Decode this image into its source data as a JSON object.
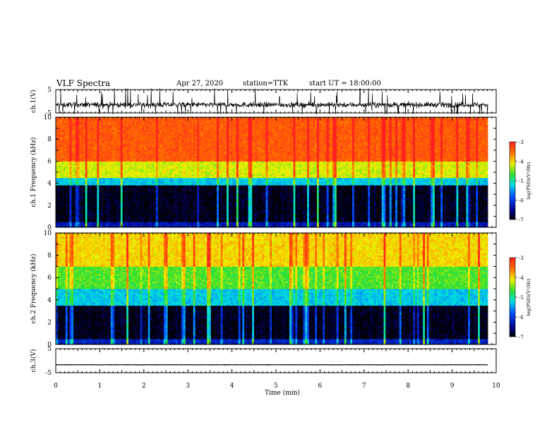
{
  "header": {
    "title": "VLF Spectra",
    "date": "Apr 27, 2020",
    "station": "station=TTK",
    "start": "start UT = 18:00:00"
  },
  "chart_data": [
    {
      "type": "line",
      "panel": "ch1-waveform",
      "ylabel": "ch.1(V)",
      "ylim": [
        -5,
        5
      ],
      "yticks": [
        "5",
        "-5"
      ],
      "xlim": [
        0,
        10
      ],
      "baseline": -1.5,
      "noise_amplitude": 2.0
    },
    {
      "type": "heatmap",
      "panel": "ch1-spectrogram",
      "ylabel": "ch.1 Frequency (kHz)",
      "ylim": [
        0,
        10
      ],
      "yticks": [
        "0",
        "2",
        "4",
        "6",
        "8",
        "10"
      ],
      "xlim": [
        0,
        9.8
      ],
      "zlabel": "log(PSD)(V²/Hz)",
      "zlim": [
        -7,
        -3
      ],
      "zticks": [
        "-3",
        "-4",
        "-5",
        "-6",
        "-7"
      ],
      "bands": [
        {
          "f_min": 0,
          "f_max": 0.5,
          "log_psd": -6.3
        },
        {
          "f_min": 0.5,
          "f_max": 3.8,
          "log_psd": -6.9
        },
        {
          "f_min": 3.8,
          "f_max": 4.5,
          "log_psd": -5.3
        },
        {
          "f_min": 4.5,
          "f_max": 6.0,
          "log_psd": -4.2
        },
        {
          "f_min": 6.0,
          "f_max": 10,
          "log_psd": -3.4
        }
      ]
    },
    {
      "type": "heatmap",
      "panel": "ch2-spectrogram",
      "ylabel": "ch.2 Frequency (kHz)",
      "ylim": [
        0,
        10
      ],
      "yticks": [
        "0",
        "2",
        "4",
        "6",
        "8",
        "10"
      ],
      "xlim": [
        0,
        9.8
      ],
      "zlabel": "log(PSD)(V²/Hz)",
      "zlim": [
        -7,
        -3
      ],
      "zticks": [
        "-3",
        "-4",
        "-5",
        "-6",
        "-7"
      ],
      "bands": [
        {
          "f_min": 0,
          "f_max": 0.5,
          "log_psd": -6.2
        },
        {
          "f_min": 0.5,
          "f_max": 3.5,
          "log_psd": -6.9
        },
        {
          "f_min": 3.5,
          "f_max": 5.0,
          "log_psd": -5.3
        },
        {
          "f_min": 5.0,
          "f_max": 7.0,
          "log_psd": -4.6
        },
        {
          "f_min": 7.0,
          "f_max": 10,
          "log_psd": -4.0
        }
      ]
    },
    {
      "type": "line",
      "panel": "ch3-waveform",
      "ylabel": "ch.3(V)",
      "ylim": [
        -5,
        5
      ],
      "yticks": [
        "5",
        "-5"
      ],
      "xlim": [
        0,
        10
      ],
      "baseline": -1.7,
      "noise_amplitude": 0.1
    },
    {
      "type": "axis",
      "panel": "time-axis",
      "xlabel": "Time (min)",
      "xlim": [
        0,
        10
      ],
      "xticks": [
        "0",
        "1",
        "2",
        "3",
        "4",
        "5",
        "6",
        "7",
        "8",
        "9",
        "10"
      ]
    }
  ]
}
